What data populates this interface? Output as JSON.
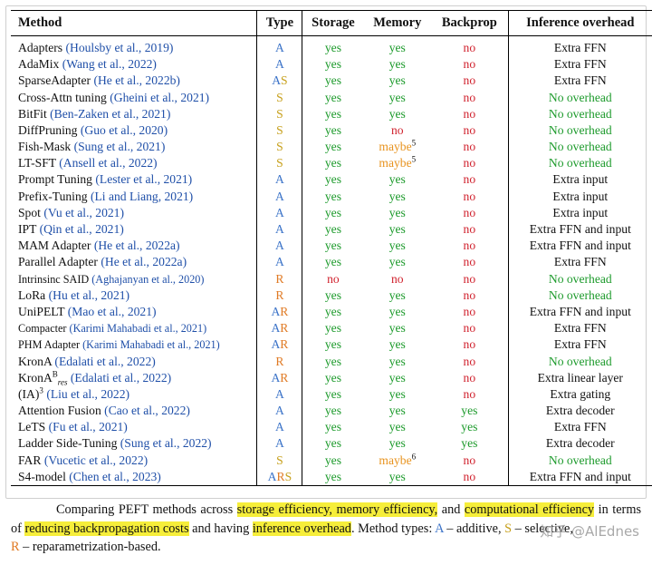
{
  "headers": {
    "method": "Method",
    "type": "Type",
    "storage": "Storage",
    "memory": "Memory",
    "backprop": "Backprop",
    "overhead": "Inference overhead"
  },
  "rows": [
    {
      "name": "Adapters",
      "cite": "(Houlsby et al., 2019)",
      "types": [
        "A"
      ],
      "storage": "yes",
      "memory": "yes",
      "backprop": "no",
      "overhead": "Extra FFN"
    },
    {
      "name": "AdaMix",
      "cite": "(Wang et al., 2022)",
      "types": [
        "A"
      ],
      "storage": "yes",
      "memory": "yes",
      "backprop": "no",
      "overhead": "Extra FFN"
    },
    {
      "name": "SparseAdapter",
      "cite": "(He et al., 2022b)",
      "types": [
        "A",
        "S"
      ],
      "storage": "yes",
      "memory": "yes",
      "backprop": "no",
      "overhead": "Extra FFN"
    },
    {
      "name": "Cross-Attn tuning",
      "cite": "(Gheini et al., 2021)",
      "types": [
        "S"
      ],
      "storage": "yes",
      "memory": "yes",
      "backprop": "no",
      "overhead": "No overhead"
    },
    {
      "name": "BitFit",
      "cite": "(Ben-Zaken et al., 2021)",
      "types": [
        "S"
      ],
      "storage": "yes",
      "memory": "yes",
      "backprop": "no",
      "overhead": "No overhead"
    },
    {
      "name": "DiffPruning",
      "cite": "(Guo et al., 2020)",
      "types": [
        "S"
      ],
      "storage": "yes",
      "memory": "no",
      "backprop": "no",
      "overhead": "No overhead"
    },
    {
      "name": "Fish-Mask",
      "cite": "(Sung et al., 2021)",
      "types": [
        "S"
      ],
      "storage": "yes",
      "memory": "maybe",
      "memory_note": "5",
      "backprop": "no",
      "overhead": "No overhead"
    },
    {
      "name": "LT-SFT",
      "cite": "(Ansell et al., 2022)",
      "types": [
        "S"
      ],
      "storage": "yes",
      "memory": "maybe",
      "memory_note": "5",
      "backprop": "no",
      "overhead": "No overhead"
    },
    {
      "name": "Prompt Tuning",
      "cite": "(Lester et al., 2021)",
      "types": [
        "A"
      ],
      "storage": "yes",
      "memory": "yes",
      "backprop": "no",
      "overhead": "Extra input"
    },
    {
      "name": "Prefix-Tuning",
      "cite": "(Li and Liang, 2021)",
      "types": [
        "A"
      ],
      "storage": "yes",
      "memory": "yes",
      "backprop": "no",
      "overhead": "Extra input"
    },
    {
      "name": "Spot",
      "cite": "(Vu et al., 2021)",
      "types": [
        "A"
      ],
      "storage": "yes",
      "memory": "yes",
      "backprop": "no",
      "overhead": "Extra input"
    },
    {
      "name": "IPT",
      "cite": "(Qin et al., 2021)",
      "types": [
        "A"
      ],
      "storage": "yes",
      "memory": "yes",
      "backprop": "no",
      "overhead": "Extra FFN and input"
    },
    {
      "name": "MAM Adapter",
      "cite": "(He et al., 2022a)",
      "types": [
        "A"
      ],
      "storage": "yes",
      "memory": "yes",
      "backprop": "no",
      "overhead": "Extra FFN and input"
    },
    {
      "name": "Parallel Adapter",
      "cite": "(He et al., 2022a)",
      "types": [
        "A"
      ],
      "storage": "yes",
      "memory": "yes",
      "backprop": "no",
      "overhead": "Extra FFN"
    },
    {
      "name": "Intrinsinc SAID",
      "cite": "(Aghajanyan et al., 2020)",
      "small": true,
      "types": [
        "R"
      ],
      "storage": "no",
      "memory": "no",
      "backprop": "no",
      "overhead": "No overhead"
    },
    {
      "name": "LoRa",
      "cite": "(Hu et al., 2021)",
      "types": [
        "R"
      ],
      "storage": "yes",
      "memory": "yes",
      "backprop": "no",
      "overhead": "No overhead"
    },
    {
      "name": "UniPELT",
      "cite": "(Mao et al., 2021)",
      "types": [
        "A",
        "R"
      ],
      "storage": "yes",
      "memory": "yes",
      "backprop": "no",
      "overhead": "Extra FFN and input"
    },
    {
      "name": "Compacter",
      "cite": "(Karimi Mahabadi et al., 2021)",
      "small": true,
      "types": [
        "A",
        "R"
      ],
      "storage": "yes",
      "memory": "yes",
      "backprop": "no",
      "overhead": "Extra FFN"
    },
    {
      "name": "PHM Adapter",
      "cite": "(Karimi Mahabadi et al., 2021)",
      "small": true,
      "types": [
        "A",
        "R"
      ],
      "storage": "yes",
      "memory": "yes",
      "backprop": "no",
      "overhead": "Extra FFN"
    },
    {
      "name": "KronA",
      "cite": "(Edalati et al., 2022)",
      "types": [
        "R"
      ],
      "storage": "yes",
      "memory": "yes",
      "backprop": "no",
      "overhead": "No overhead"
    },
    {
      "name": "KronA",
      "name_sup": "B",
      "name_sub": "res",
      "cite": "(Edalati et al., 2022)",
      "types": [
        "A",
        "R"
      ],
      "storage": "yes",
      "memory": "yes",
      "backprop": "no",
      "overhead": "Extra linear layer"
    },
    {
      "name": "(IA)",
      "name_sup": "3",
      "cite": "(Liu et al., 2022)",
      "types": [
        "A"
      ],
      "storage": "yes",
      "memory": "yes",
      "backprop": "no",
      "overhead": "Extra gating"
    },
    {
      "name": "Attention Fusion",
      "cite": "(Cao et al., 2022)",
      "types": [
        "A"
      ],
      "storage": "yes",
      "memory": "yes",
      "backprop": "yes",
      "overhead": "Extra decoder"
    },
    {
      "name": "LeTS",
      "cite": "(Fu et al., 2021)",
      "types": [
        "A"
      ],
      "storage": "yes",
      "memory": "yes",
      "backprop": "yes",
      "overhead": "Extra FFN"
    },
    {
      "name": "Ladder Side-Tuning",
      "cite": "(Sung et al., 2022)",
      "types": [
        "A"
      ],
      "storage": "yes",
      "memory": "yes",
      "backprop": "yes",
      "overhead": "Extra decoder"
    },
    {
      "name": "FAR",
      "cite": "(Vucetic et al., 2022)",
      "types": [
        "S"
      ],
      "storage": "yes",
      "memory": "maybe",
      "memory_note": "6",
      "backprop": "no",
      "overhead": "No overhead"
    },
    {
      "name": "S4-model",
      "cite": "(Chen et al., 2023)",
      "types": [
        "A",
        "R",
        "S"
      ],
      "storage": "yes",
      "memory": "yes",
      "backprop": "no",
      "overhead": "Extra FFN and input"
    }
  ],
  "caption": {
    "t1": "Comparing PEFT methods across ",
    "h1": "storage efficiency, memory efficiency,",
    "t2": " and ",
    "h2": "computational efficiency",
    "t3": " in terms of ",
    "h3": "reducing backpropagation costs",
    "t4": " and having ",
    "h4": "inference overhead",
    "t5": ". Method types: ",
    "typeA": "A",
    "t6": " – additive, ",
    "typeS": "S",
    "t7": " – selective,",
    "typeR": "R",
    "t8": " – reparametrization-based."
  },
  "watermark": "知乎 @AlEdnes",
  "colors": {
    "A": "#3b73c8",
    "S": "#c7a01c",
    "R": "#e07a24",
    "yes": "#1c9a2b",
    "no": "#d0202c",
    "maybe": "#e8931e",
    "highlight": "#f6ee3a"
  }
}
